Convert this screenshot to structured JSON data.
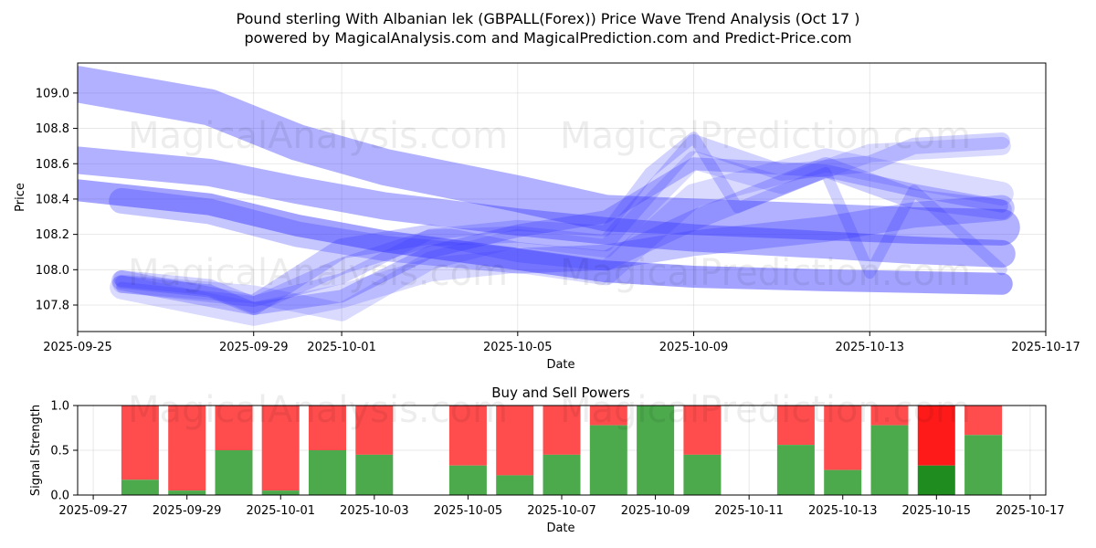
{
  "header": {
    "title_line1": "Pound sterling With Albanian lek (GBPALL(Forex)) Price Wave Trend Analysis (Oct 17 )",
    "title_line2": "powered by MagicalAnalysis.com and MagicalPrediction.com and Predict-Price.com"
  },
  "watermark": {
    "text1": "MagicalAnalysis.com",
    "text2": "MagicalPrediction.com"
  },
  "chart_data": [
    {
      "type": "line",
      "title": "Pound sterling With Albanian lek (GBPALL(Forex)) Price Wave Trend Analysis (Oct 17 )",
      "xlabel": "Date",
      "ylabel": "Price",
      "xlim": [
        "2025-09-25",
        "2025-10-17"
      ],
      "ylim": [
        107.65,
        109.17
      ],
      "x_ticks": [
        "2025-09-25",
        "2025-09-29",
        "2025-10-01",
        "2025-10-05",
        "2025-10-09",
        "2025-10-13",
        "2025-10-17"
      ],
      "y_ticks": [
        "107.8",
        "108.0",
        "108.2",
        "108.4",
        "108.6",
        "108.8",
        "109.0"
      ],
      "band_color": "#3333ff",
      "series": [
        {
          "name": "wave-1",
          "x": [
            "2025-09-25",
            "2025-09-28",
            "2025-09-30",
            "2025-10-02",
            "2025-10-05",
            "2025-10-07",
            "2025-10-09",
            "2025-10-12",
            "2025-10-14",
            "2025-10-16"
          ],
          "values": [
            109.05,
            108.92,
            108.72,
            108.58,
            108.43,
            108.32,
            108.3,
            108.27,
            108.25,
            108.24
          ]
        },
        {
          "name": "wave-2",
          "x": [
            "2025-09-25",
            "2025-09-28",
            "2025-09-30",
            "2025-10-02",
            "2025-10-05",
            "2025-10-07",
            "2025-10-09",
            "2025-10-12",
            "2025-10-14",
            "2025-10-16"
          ],
          "values": [
            108.62,
            108.55,
            108.45,
            108.36,
            108.27,
            108.22,
            108.18,
            108.14,
            108.11,
            108.09
          ]
        },
        {
          "name": "wave-3",
          "x": [
            "2025-09-25",
            "2025-09-28",
            "2025-09-30",
            "2025-10-02",
            "2025-10-05",
            "2025-10-07",
            "2025-10-09",
            "2025-10-12",
            "2025-10-14",
            "2025-10-16"
          ],
          "values": [
            108.45,
            108.37,
            108.25,
            108.16,
            108.06,
            107.99,
            107.96,
            107.94,
            107.93,
            107.92
          ]
        },
        {
          "name": "wave-4",
          "x": [
            "2025-09-26",
            "2025-09-28",
            "2025-09-30",
            "2025-10-02",
            "2025-10-05",
            "2025-10-07",
            "2025-10-09",
            "2025-10-12",
            "2025-10-14",
            "2025-10-16"
          ],
          "values": [
            108.39,
            108.33,
            108.2,
            108.12,
            108.05,
            108.07,
            108.15,
            108.23,
            108.31,
            108.35
          ]
        },
        {
          "name": "wave-5",
          "x": [
            "2025-09-26",
            "2025-09-28",
            "2025-09-29",
            "2025-10-01",
            "2025-10-03",
            "2025-10-05",
            "2025-10-07",
            "2025-10-09",
            "2025-10-12",
            "2025-10-14",
            "2025-10-16"
          ],
          "values": [
            107.93,
            107.88,
            107.78,
            107.85,
            108.1,
            108.22,
            108.3,
            108.6,
            108.56,
            108.45,
            108.36
          ]
        },
        {
          "name": "wave-6",
          "x": [
            "2025-09-26",
            "2025-09-28",
            "2025-09-29",
            "2025-10-01",
            "2025-10-03",
            "2025-10-05",
            "2025-10-07",
            "2025-10-09",
            "2025-10-11",
            "2025-10-13",
            "2025-10-14",
            "2025-10-16"
          ],
          "values": [
            107.95,
            107.9,
            107.8,
            108.02,
            108.18,
            108.2,
            108.15,
            108.72,
            108.55,
            108.6,
            108.7,
            108.73
          ]
        },
        {
          "name": "wave-7",
          "x": [
            "2025-09-26",
            "2025-09-29",
            "2025-10-01",
            "2025-10-03",
            "2025-10-05",
            "2025-10-07",
            "2025-10-08",
            "2025-10-09",
            "2025-10-10",
            "2025-10-12",
            "2025-10-13",
            "2025-10-14",
            "2025-10-16"
          ],
          "values": [
            107.9,
            107.82,
            107.95,
            108.2,
            108.25,
            108.22,
            108.55,
            108.75,
            108.35,
            108.55,
            107.98,
            108.45,
            108.0
          ]
        },
        {
          "name": "wave-8",
          "x": [
            "2025-09-26",
            "2025-09-29",
            "2025-10-01",
            "2025-10-03",
            "2025-10-05",
            "2025-10-07",
            "2025-10-09",
            "2025-10-11",
            "2025-10-13",
            "2025-10-16"
          ],
          "values": [
            107.92,
            107.86,
            107.76,
            108.05,
            108.18,
            108.12,
            108.62,
            108.48,
            108.66,
            108.7
          ]
        },
        {
          "name": "wave-9",
          "x": [
            "2025-09-26",
            "2025-09-29",
            "2025-10-01",
            "2025-10-03",
            "2025-10-05",
            "2025-10-07",
            "2025-10-09",
            "2025-10-12",
            "2025-10-14",
            "2025-10-16"
          ],
          "values": [
            107.94,
            107.8,
            108.12,
            108.2,
            108.1,
            108.05,
            108.28,
            108.58,
            108.4,
            108.34
          ]
        },
        {
          "name": "wave-10",
          "x": [
            "2025-09-26",
            "2025-09-29",
            "2025-10-01",
            "2025-10-03",
            "2025-10-05",
            "2025-10-07",
            "2025-10-09",
            "2025-10-12",
            "2025-10-14",
            "2025-10-16"
          ],
          "values": [
            107.9,
            107.75,
            107.85,
            108.0,
            108.05,
            107.98,
            108.42,
            108.62,
            108.52,
            108.43
          ]
        }
      ]
    },
    {
      "type": "bar",
      "title": "Buy and Sell Powers",
      "xlabel": "Date",
      "ylabel": "Signal Strength",
      "xlim": [
        "2025-09-26 16:00",
        "2025-10-17 08:00"
      ],
      "ylim": [
        0,
        1
      ],
      "x_ticks": [
        "2025-09-27",
        "2025-09-29",
        "2025-10-01",
        "2025-10-03",
        "2025-10-05",
        "2025-10-07",
        "2025-10-09",
        "2025-10-11",
        "2025-10-13",
        "2025-10-15",
        "2025-10-17"
      ],
      "y_ticks": [
        "0.0",
        "0.5",
        "1.0"
      ],
      "buy_color": "#4caa4c",
      "sell_color": "#ff4d4d",
      "highlight_buy_color": "#1e8c1e",
      "highlight_sell_color": "#ff1a1a",
      "categories": [
        "2025-09-28",
        "2025-09-29",
        "2025-09-30",
        "2025-10-01",
        "2025-10-02",
        "2025-10-03",
        "2025-10-05",
        "2025-10-06",
        "2025-10-07",
        "2025-10-08",
        "2025-10-09",
        "2025-10-10",
        "2025-10-12",
        "2025-10-13",
        "2025-10-14",
        "2025-10-15",
        "2025-10-16"
      ],
      "buy": [
        0.17,
        0.05,
        0.5,
        0.05,
        0.5,
        0.45,
        0.33,
        0.22,
        0.45,
        0.78,
        1.0,
        0.45,
        0.56,
        0.28,
        0.78,
        0.33,
        0.67
      ],
      "highlight": [
        false,
        false,
        false,
        false,
        false,
        false,
        false,
        false,
        false,
        false,
        false,
        false,
        false,
        false,
        false,
        true,
        false
      ]
    }
  ]
}
